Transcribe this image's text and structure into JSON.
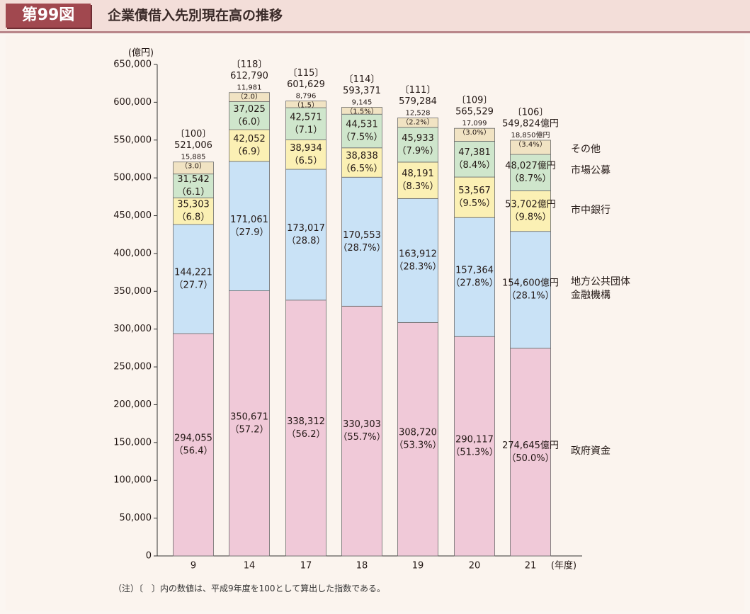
{
  "header": {
    "figure_number": "第99図",
    "title": "企業債借入先別現在高の推移"
  },
  "note": "（注）〔　〕内の数値は、平成9年度を100として算出した指数である。",
  "chart_data": {
    "type": "bar",
    "stacked": true,
    "ylabel": "(億円)",
    "xlabel": "(年度)",
    "ylim": [
      0,
      650000
    ],
    "yticks": [
      0,
      50000,
      100000,
      150000,
      200000,
      250000,
      300000,
      350000,
      400000,
      450000,
      500000,
      550000,
      600000,
      650000
    ],
    "ytick_labels": [
      "0",
      "50,000",
      "100,000",
      "150,000",
      "200,000",
      "250,000",
      "300,000",
      "350,000",
      "400,000",
      "450,000",
      "500,000",
      "550,000",
      "600,000",
      "650,000"
    ],
    "categories": [
      "9",
      "14",
      "17",
      "18",
      "19",
      "20",
      "21"
    ],
    "totals": [
      521006,
      612790,
      601629,
      593371,
      579284,
      565529,
      549824
    ],
    "total_labels": [
      "521,006",
      "612,790",
      "601,629",
      "593,371",
      "579,284",
      "565,529",
      "549,824億円"
    ],
    "index_labels": [
      "〔100〕",
      "〔118〕",
      "〔115〕",
      "〔114〕",
      "〔111〕",
      "〔109〕",
      "〔106〕"
    ],
    "series": [
      {
        "name": "政府資金",
        "color": "#f0c9d8",
        "values": [
          294055,
          350671,
          338312,
          330303,
          308720,
          290117,
          274645
        ],
        "value_labels": [
          "294,055",
          "350,671",
          "338,312",
          "330,303",
          "308,720",
          "290,117",
          "274,645億円"
        ],
        "pct_labels": [
          "（56.4）",
          "（57.2）",
          "（56.2）",
          "（55.7%）",
          "（53.3%）",
          "（51.3%）",
          "（50.0%）"
        ]
      },
      {
        "name": "地方公共団体金融機構",
        "name_lines": [
          "地方公共団体",
          "金融機構"
        ],
        "color": "#c9e2f6",
        "values": [
          144221,
          171061,
          173017,
          170553,
          163912,
          157364,
          154600
        ],
        "value_labels": [
          "144,221",
          "171,061",
          "173,017",
          "170,553",
          "163,912",
          "157,364",
          "154,600億円"
        ],
        "pct_labels": [
          "（27.7）",
          "（27.9）",
          "（28.8）",
          "（28.7%）",
          "（28.3%）",
          "（27.8%）",
          "（28.1%）"
        ]
      },
      {
        "name": "市中銀行",
        "color": "#fbf0b4",
        "values": [
          35303,
          42052,
          38934,
          38838,
          48191,
          53567,
          53702
        ],
        "value_labels": [
          "35,303",
          "42,052",
          "38,934",
          "38,838",
          "48,191",
          "53,567",
          "53,702億円"
        ],
        "pct_labels": [
          "（6.8）",
          "（6.9）",
          "（6.5）",
          "（6.5%）",
          "（8.3%）",
          "（9.5%）",
          "（9.8%）"
        ]
      },
      {
        "name": "市場公募",
        "color": "#cfe6cc",
        "values": [
          31542,
          37025,
          42571,
          44531,
          45933,
          47381,
          48027
        ],
        "value_labels": [
          "31,542",
          "37,025",
          "42,571",
          "44,531",
          "45,933",
          "47,381",
          "48,027億円"
        ],
        "pct_labels": [
          "（6.1）",
          "（6.0）",
          "（7.1）",
          "（7.5%）",
          "（7.9%）",
          "（8.4%）",
          "（8.7%）"
        ]
      },
      {
        "name": "その他",
        "color": "#f1e3c3",
        "values": [
          15885,
          11981,
          8796,
          9145,
          12528,
          17099,
          18850
        ],
        "value_labels": [
          "15,885",
          "11,981",
          "8,796",
          "9,145",
          "12,528",
          "17,099",
          "18,850億円"
        ],
        "pct_labels": [
          "（3.0）",
          "（2.0）",
          "（1.5）",
          "（1.5%）",
          "（2.2%）",
          "（3.0%）",
          "（3.4%）"
        ]
      }
    ]
  }
}
